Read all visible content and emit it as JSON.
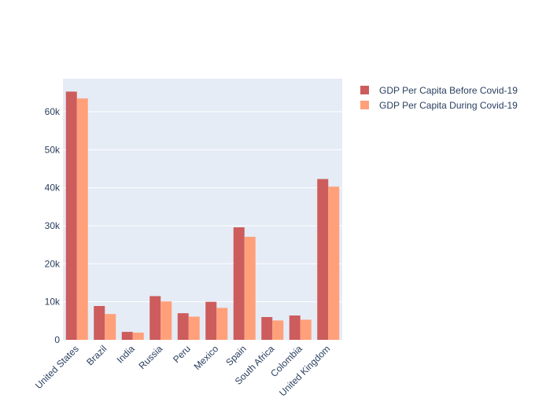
{
  "chart_data": {
    "type": "bar",
    "title": "",
    "xlabel": "",
    "ylabel": "",
    "categories": [
      "United States",
      "Brazil",
      "India",
      "Russia",
      "Peru",
      "Mexico",
      "Spain",
      "South Africa",
      "Colombia",
      "United Kingdom"
    ],
    "series": [
      {
        "name": "GDP Per Capita Before Covid-19",
        "color": "#cd5c5c",
        "values": [
          65300,
          8900,
          2100,
          11500,
          7000,
          10000,
          29600,
          6000,
          6400,
          42300
        ]
      },
      {
        "name": "GDP Per Capita During Covid-19",
        "color": "#ffa07a",
        "values": [
          63500,
          6800,
          1900,
          10100,
          6100,
          8400,
          27100,
          5100,
          5300,
          40300
        ]
      }
    ],
    "ylim": [
      0,
      68700
    ],
    "yticks": [
      0,
      10000,
      20000,
      30000,
      40000,
      50000,
      60000
    ],
    "ytick_labels": [
      "0",
      "10k",
      "20k",
      "30k",
      "40k",
      "50k",
      "60k"
    ],
    "grid": true,
    "legend_position": "top-right",
    "plot_background": "#e5ecf6"
  }
}
